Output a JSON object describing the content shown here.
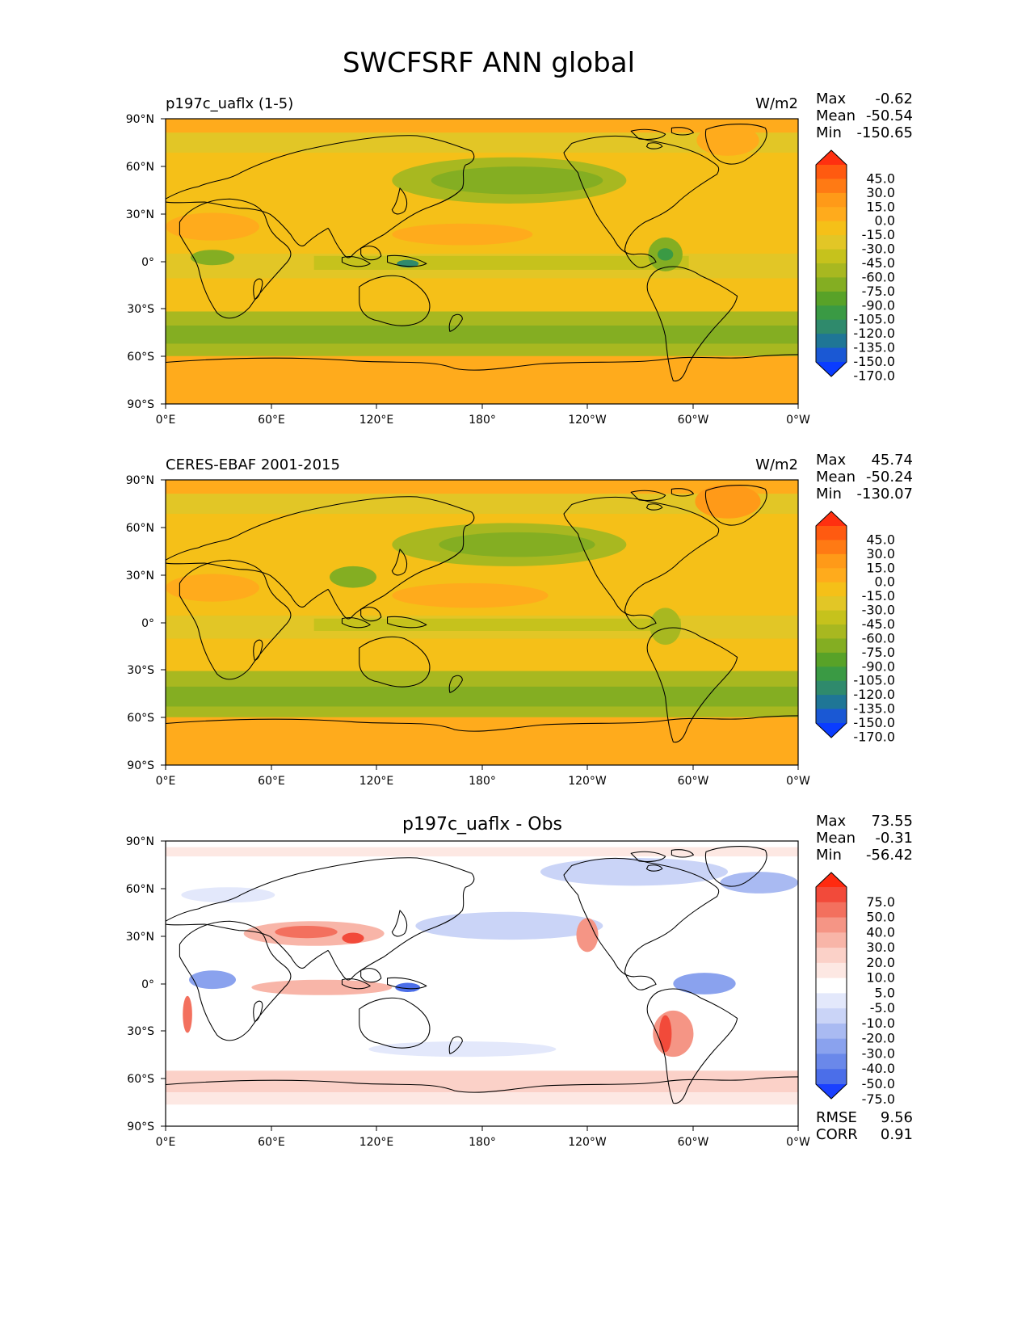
{
  "figure": {
    "title": "SWCFSRF ANN global",
    "lat_labels": [
      "90°N",
      "60°N",
      "30°N",
      "0°",
      "30°S",
      "60°S",
      "90°S"
    ],
    "lon_labels": [
      "0°E",
      "60°E",
      "120°E",
      "180°",
      "120°W",
      "60°W",
      "0°W"
    ]
  },
  "panels": [
    {
      "id": "test",
      "title_left": "p197c_uaflx (1-5)",
      "title_center": "",
      "units": "W/m2",
      "stats": [
        {
          "label": "Max",
          "value": "-0.62"
        },
        {
          "label": "Mean",
          "value": "-50.54"
        },
        {
          "label": "Min",
          "value": "-150.65"
        }
      ],
      "colorbar": {
        "labels": [
          "45.0",
          "30.0",
          "15.0",
          "0.0",
          "-15.0",
          "-30.0",
          "-45.0",
          "-60.0",
          "-75.0",
          "-90.0",
          "-105.0",
          "-120.0",
          "-135.0",
          "-150.0",
          "-170.0"
        ],
        "colors": [
          "#ff3010",
          "#ff5a10",
          "#ff7a14",
          "#ff9a18",
          "#ffab1c",
          "#f5c018",
          "#e2c626",
          "#c6c21c",
          "#a8b820",
          "#84ae22",
          "#58a228",
          "#3a9a44",
          "#2f8a6c",
          "#1f7696",
          "#1a58d4",
          "#0a3cff"
        ]
      },
      "map_field": "mean_state_test"
    },
    {
      "id": "ref",
      "title_left": "CERES-EBAF 2001-2015",
      "title_center": "",
      "units": "W/m2",
      "stats": [
        {
          "label": "Max",
          "value": "45.74"
        },
        {
          "label": "Mean",
          "value": "-50.24"
        },
        {
          "label": "Min",
          "value": "-130.07"
        }
      ],
      "colorbar": {
        "labels": [
          "45.0",
          "30.0",
          "15.0",
          "0.0",
          "-15.0",
          "-30.0",
          "-45.0",
          "-60.0",
          "-75.0",
          "-90.0",
          "-105.0",
          "-120.0",
          "-135.0",
          "-150.0",
          "-170.0"
        ],
        "colors": [
          "#ff3010",
          "#ff5a10",
          "#ff7a14",
          "#ff9a18",
          "#ffab1c",
          "#f5c018",
          "#e2c626",
          "#c6c21c",
          "#a8b820",
          "#84ae22",
          "#58a228",
          "#3a9a44",
          "#2f8a6c",
          "#1f7696",
          "#1a58d4",
          "#0a3cff"
        ]
      },
      "map_field": "mean_state_obs"
    },
    {
      "id": "diff",
      "title_left": "",
      "title_center": "p197c_uaflx - Obs",
      "units": "",
      "stats": [
        {
          "label": "Max",
          "value": "73.55"
        },
        {
          "label": "Mean",
          "value": "-0.31"
        },
        {
          "label": "Min",
          "value": "-56.42"
        }
      ],
      "extra_stats": [
        {
          "label": "RMSE",
          "value": "9.56"
        },
        {
          "label": "CORR",
          "value": "0.91"
        }
      ],
      "colorbar": {
        "labels": [
          "75.0",
          "50.0",
          "40.0",
          "30.0",
          "20.0",
          "10.0",
          "5.0",
          "-5.0",
          "-10.0",
          "-20.0",
          "-30.0",
          "-40.0",
          "-50.0",
          "-75.0"
        ],
        "colors": [
          "#ff2a10",
          "#f24a3a",
          "#f3705e",
          "#f59585",
          "#f8b5a8",
          "#fbd1c8",
          "#fde8e3",
          "#ffffff",
          "#e3e8fb",
          "#cad4f7",
          "#a9baf2",
          "#8aa2ee",
          "#6a88ea",
          "#4b6ee9",
          "#1a40ff"
        ]
      },
      "map_field": "difference"
    }
  ]
}
